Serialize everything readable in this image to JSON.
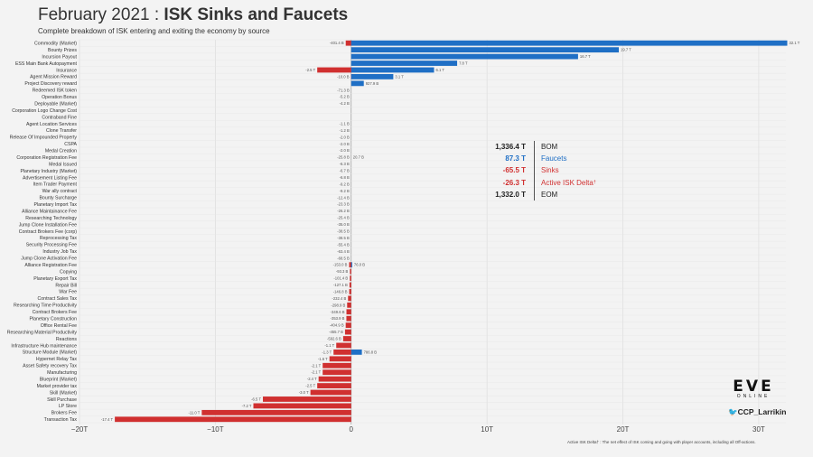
{
  "header": {
    "title_month": "February 2021 : ",
    "title_bold": "ISK Sinks and Faucets",
    "subtitle": "Complete breakdown of ISK entering and exiting the economy by source"
  },
  "summary": [
    {
      "value": "1,336.4 T",
      "label": "BOM",
      "color": "#222222"
    },
    {
      "value": "87.3 T",
      "label": "Faucets",
      "color": "#1f6fc5"
    },
    {
      "value": "-65.5 T",
      "label": "Sinks",
      "color": "#d03030"
    },
    {
      "value": "-26.3 T",
      "label": "Active ISK Delta",
      "sup": "†",
      "color": "#d03030"
    },
    {
      "value": "1,332.0 T",
      "label": "EOM",
      "color": "#222222"
    }
  ],
  "branding": {
    "logo_text": "EVE",
    "logo_sub": "ONLINE",
    "handle": "CCP_Larrikin"
  },
  "footnote": "Active ISK Delta† : The net effect of ISK coming and going with player accounts, including all Off-actions.",
  "colors": {
    "faucet": "#1f6fc5",
    "sink": "#d03030"
  },
  "chart_data": {
    "type": "bar",
    "orientation": "horizontal",
    "xlim": [
      -20,
      32
    ],
    "xticks": [
      -20,
      -10,
      0,
      10,
      20,
      30
    ],
    "xtick_labels": [
      "−20T",
      "−10T",
      "0",
      "10T",
      "20T",
      "30T"
    ],
    "grid": true,
    "rows": [
      {
        "category": "Commodity (Market)",
        "sink": -0.4014,
        "sink_label": "-401.4 B",
        "faucet": 32.1,
        "faucet_label": "32.1 T"
      },
      {
        "category": "Bounty Prizes",
        "faucet": 19.7,
        "faucet_label": "19.7 T"
      },
      {
        "category": "Incursion Payout",
        "faucet": 16.7,
        "faucet_label": "16.7 T"
      },
      {
        "category": "ESS Main Bank Autopayment",
        "faucet": 7.8,
        "faucet_label": "7.8 T"
      },
      {
        "category": "Insurance",
        "sink": -2.5,
        "sink_label": "-2.5 T",
        "faucet": 6.1,
        "faucet_label": "6.1 T"
      },
      {
        "category": "Agent Mission Reward",
        "sink": -0.01,
        "sink_label": "-10.0 B",
        "faucet": 3.1,
        "faucet_label": "3.1 T"
      },
      {
        "category": "Project Discovery reward",
        "faucet": 0.9279,
        "faucet_label": "927.9 B"
      },
      {
        "category": "Redeemed ISK token",
        "sink_label": "-71.3 B"
      },
      {
        "category": "Operation Bonus",
        "sink_label": "-5.2 B"
      },
      {
        "category": "Deployable (Market)",
        "sink_label": "-4.2 B"
      },
      {
        "category": "Corporation Logo Change Cost"
      },
      {
        "category": "Contraband Fine"
      },
      {
        "category": "Agent Location Services",
        "sink_label": "-1.1 B"
      },
      {
        "category": "Clone Transfer",
        "sink_label": "-1.2 B"
      },
      {
        "category": "Release Of Impounded Property",
        "sink_label": "-2.0 B"
      },
      {
        "category": "CSPA",
        "sink_label": "-2.0 B"
      },
      {
        "category": "Medal Creation",
        "sink_label": "-2.0 B"
      },
      {
        "category": "Corporation Registration Fee",
        "sink_label": "-25.8 B",
        "faucet_label": "20.7 B"
      },
      {
        "category": "Medal Issued",
        "sink_label": "-6.3 B"
      },
      {
        "category": "Planetary Industry (Market)",
        "sink_label": "-6.7 B"
      },
      {
        "category": "Advertisement Listing Fee",
        "sink_label": "-6.8 B"
      },
      {
        "category": "Item Trader Payment",
        "sink_label": "-9.2 B"
      },
      {
        "category": "War ally contract",
        "sink_label": "-9.2 B"
      },
      {
        "category": "Bounty Surcharge",
        "sink_label": "-12.4 B"
      },
      {
        "category": "Planetary Import Tax",
        "sink_label": "-23.3 B"
      },
      {
        "category": "Alliance Maintainance Fee",
        "sink_label": "-26.2 B"
      },
      {
        "category": "Researching Technology",
        "sink_label": "-25.4 B"
      },
      {
        "category": "Jump Clone Installation Fee",
        "sink_label": "-35.0 B"
      },
      {
        "category": "Contract Brokers Fee (corp)",
        "sink_label": "-38.5 B"
      },
      {
        "category": "Reprocessing Tax",
        "sink_label": "-38.5 B"
      },
      {
        "category": "Security Processing Fee",
        "sink_label": "-55.4 B"
      },
      {
        "category": "Industry Job Tax",
        "sink_label": "-63.4 B"
      },
      {
        "category": "Jump Clone Activation Fee",
        "sink_label": "-68.5 B"
      },
      {
        "category": "Alliance Registration Fee",
        "sink": -0.153,
        "sink_label": "-153.0 B",
        "faucet": 0.076,
        "faucet_label": "76.0 B"
      },
      {
        "category": "Copying",
        "sink": -0.0933,
        "sink_label": "-93.3 B"
      },
      {
        "category": "Planetary Export Tax",
        "sink": -0.1014,
        "sink_label": "-101.4 B"
      },
      {
        "category": "Repair Bill",
        "sink": -0.1271,
        "sink_label": "-127.1 B"
      },
      {
        "category": "War Fee",
        "sink": -0.1468,
        "sink_label": "-146.8 B"
      },
      {
        "category": "Contract Sales Tax",
        "sink": -0.2324,
        "sink_label": "-232.4 B"
      },
      {
        "category": "Researching Time Productivity",
        "sink": -0.2989,
        "sink_label": "-298.9 B"
      },
      {
        "category": "Contract Brokers Fee",
        "sink": -0.3496,
        "sink_label": "-349.6 B"
      },
      {
        "category": "Planetary Construction",
        "sink": -0.3539,
        "sink_label": "-353.9 B"
      },
      {
        "category": "Office Rental Fee",
        "sink": -0.4049,
        "sink_label": "-404.9 B"
      },
      {
        "category": "Researching Material Productivity",
        "sink": -0.4557,
        "sink_label": "-455.7 B"
      },
      {
        "category": "Reactions",
        "sink": -0.5926,
        "sink_label": "-592.6 B"
      },
      {
        "category": "Infrastructure Hub maintenance",
        "sink": -1.1,
        "sink_label": "-1.1 T"
      },
      {
        "category": "Structure Module (Market)",
        "sink": -1.3,
        "sink_label": "-1.3 T",
        "faucet": 0.7868,
        "faucet_label": "786.8 B"
      },
      {
        "category": "Hypernet Relay Tax",
        "sink": -1.6,
        "sink_label": "-1.6 T"
      },
      {
        "category": "Asset Safety recovery Tax",
        "sink": -2.1,
        "sink_label": "-2.1 T"
      },
      {
        "category": "Manufacturing",
        "sink": -2.1,
        "sink_label": "-2.1 T"
      },
      {
        "category": "Blueprint (Market)",
        "sink": -2.4,
        "sink_label": "-2.4 T"
      },
      {
        "category": "Market provider tax",
        "sink": -2.5,
        "sink_label": "-2.5 T"
      },
      {
        "category": "Skill (Market)",
        "sink": -3.0,
        "sink_label": "-3.0 T"
      },
      {
        "category": "Skill Purchase",
        "sink": -6.5,
        "sink_label": "-6.5 T"
      },
      {
        "category": "LP Store",
        "sink": -7.2,
        "sink_label": "-7.2 T"
      },
      {
        "category": "Brokers Fee",
        "sink": -11.0,
        "sink_label": "-11.0 T"
      },
      {
        "category": "Transaction Tax",
        "sink": -17.4,
        "sink_label": "-17.4 T"
      }
    ]
  }
}
